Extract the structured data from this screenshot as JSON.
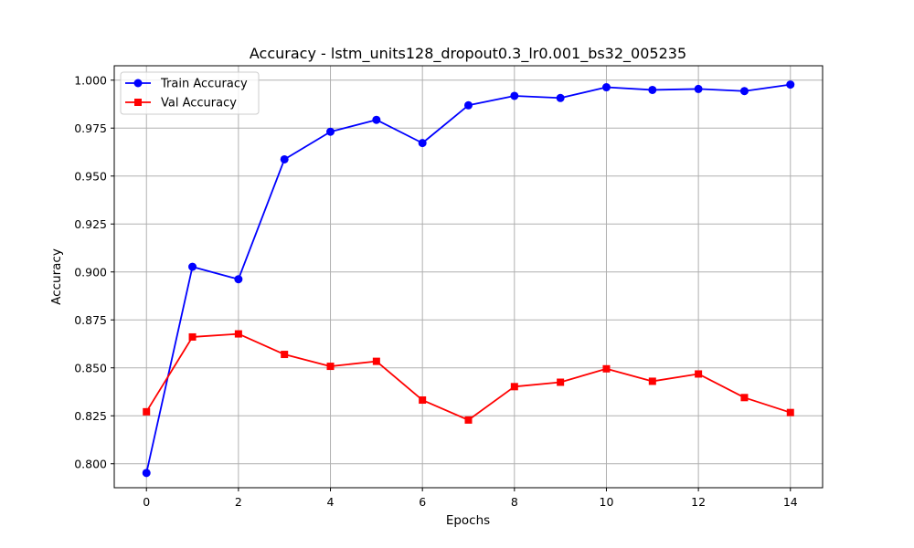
{
  "chart_data": {
    "type": "line",
    "title": "Accuracy - lstm_units128_dropout0.3_lr0.001_bs32_005235",
    "xlabel": "Epochs",
    "ylabel": "Accuracy",
    "x": [
      0,
      1,
      2,
      3,
      4,
      5,
      6,
      7,
      8,
      9,
      10,
      11,
      12,
      13,
      14
    ],
    "xlim": [
      -0.7,
      14.7
    ],
    "ylim": [
      0.7875,
      1.0075
    ],
    "xticks": [
      0,
      2,
      4,
      6,
      8,
      10,
      12,
      14
    ],
    "yticks": [
      0.8,
      0.825,
      0.85,
      0.875,
      0.9,
      0.925,
      0.95,
      0.975,
      1.0
    ],
    "xtick_labels": [
      "0",
      "2",
      "4",
      "6",
      "8",
      "10",
      "12",
      "14"
    ],
    "ytick_labels": [
      "0.800",
      "0.825",
      "0.850",
      "0.875",
      "0.900",
      "0.925",
      "0.950",
      "0.975",
      "1.000"
    ],
    "grid": true,
    "legend_position": "upper-left",
    "series": [
      {
        "name": "Train Accuracy",
        "color": "#0000ff",
        "marker": "circle",
        "values": [
          0.7952,
          0.9027,
          0.8962,
          0.9587,
          0.9731,
          0.9793,
          0.9672,
          0.9869,
          0.9918,
          0.9907,
          0.9963,
          0.9949,
          0.9954,
          0.9943,
          0.9977
        ]
      },
      {
        "name": "Val Accuracy",
        "color": "#ff0000",
        "marker": "square",
        "values": [
          0.8271,
          0.8661,
          0.8677,
          0.857,
          0.8508,
          0.8534,
          0.8332,
          0.8228,
          0.8402,
          0.8425,
          0.8495,
          0.843,
          0.8468,
          0.8345,
          0.8267
        ]
      }
    ]
  }
}
